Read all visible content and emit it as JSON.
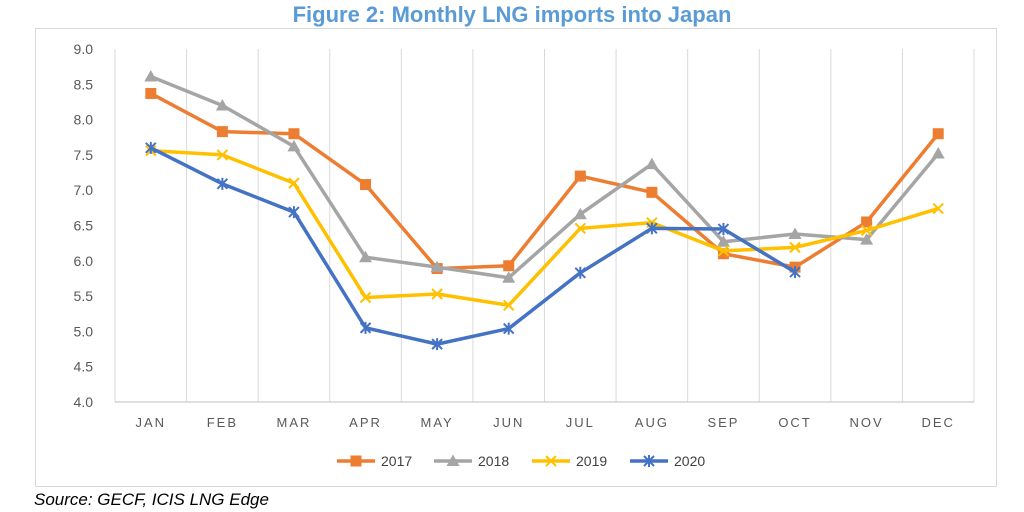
{
  "chart_data": {
    "type": "line",
    "title": "Figure 2: Monthly LNG imports into Japan",
    "xlabel": "",
    "ylabel": "",
    "categories": [
      "JAN",
      "FEB",
      "MAR",
      "APR",
      "MAY",
      "JUN",
      "JUL",
      "AUG",
      "SEP",
      "OCT",
      "NOV",
      "DEC"
    ],
    "ylim": [
      4.0,
      9.0
    ],
    "yticks": [
      "4.0",
      "4.5",
      "5.0",
      "5.5",
      "6.0",
      "6.5",
      "7.0",
      "7.5",
      "8.0",
      "8.5",
      "9.0"
    ],
    "grid": "vertical",
    "legend": "bottom",
    "series": [
      {
        "name": "2017",
        "color": "#ED7D31",
        "marker": "square",
        "values": [
          8.37,
          7.83,
          7.8,
          7.08,
          5.89,
          5.93,
          7.2,
          6.97,
          6.1,
          5.91,
          6.55,
          7.8
        ]
      },
      {
        "name": "2018",
        "color": "#A5A5A5",
        "marker": "triangle",
        "values": [
          8.61,
          8.2,
          7.62,
          6.05,
          5.91,
          5.76,
          6.66,
          7.37,
          6.27,
          6.38,
          6.3,
          7.52
        ]
      },
      {
        "name": "2019",
        "color": "#FFC000",
        "marker": "x",
        "values": [
          7.56,
          7.5,
          7.1,
          5.48,
          5.53,
          5.37,
          6.46,
          6.54,
          6.14,
          6.19,
          6.43,
          6.74
        ]
      },
      {
        "name": "2020",
        "color": "#4472C4",
        "marker": "asterisk",
        "values": [
          7.6,
          7.09,
          6.69,
          5.05,
          4.82,
          5.04,
          5.83,
          6.46,
          6.45,
          5.84,
          null,
          null
        ]
      }
    ]
  },
  "source": "Source: GECF, ICIS LNG Edge"
}
